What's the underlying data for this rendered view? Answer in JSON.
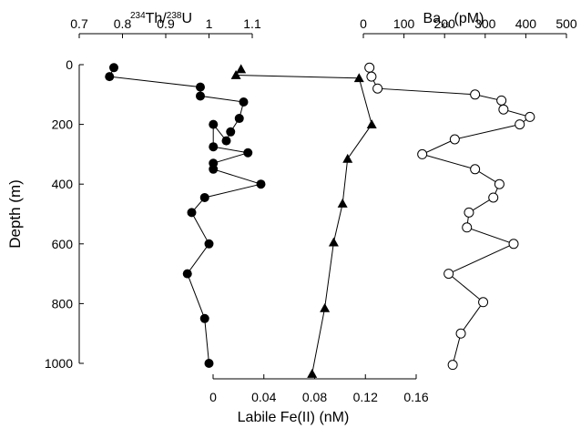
{
  "chart_data": {
    "type": "scatter",
    "depth_axis": {
      "label": "Depth (m)",
      "ticks": [
        "0",
        "200",
        "400",
        "600",
        "800",
        "1000"
      ],
      "range": [
        0,
        1000
      ],
      "inverted": true
    },
    "axes": {
      "th_u": {
        "title_sup1": "234",
        "title_base1": "Th/",
        "title_sup2": "238",
        "title_base2": "U",
        "ticks": [
          "0.7",
          "0.8",
          "0.9",
          "1",
          "1.1"
        ],
        "range": [
          0.7,
          1.1
        ],
        "position": "top-left"
      },
      "ba": {
        "title_base": "Ba",
        "title_sub": "xs",
        "title_unit": " (pM)",
        "ticks": [
          "0",
          "100",
          "200",
          "300",
          "400",
          "500"
        ],
        "range": [
          0,
          500
        ],
        "position": "top-right"
      },
      "fe": {
        "title": "Labile Fe(II) (nM)",
        "ticks": [
          "0",
          "0.04",
          "0.08",
          "0.12",
          "0.16"
        ],
        "range": [
          0,
          0.16
        ],
        "position": "bottom"
      }
    },
    "series": [
      {
        "key": "th_u",
        "marker": "filled-circle",
        "points": [
          {
            "x": 0.78,
            "y": 10
          },
          {
            "x": 0.77,
            "y": 40
          },
          {
            "x": 0.98,
            "y": 75
          },
          {
            "x": 0.98,
            "y": 105
          },
          {
            "x": 1.08,
            "y": 125
          },
          {
            "x": 1.07,
            "y": 180
          },
          {
            "x": 1.05,
            "y": 225
          },
          {
            "x": 1.04,
            "y": 255
          },
          {
            "x": 1.01,
            "y": 200
          },
          {
            "x": 1.01,
            "y": 275
          },
          {
            "x": 1.09,
            "y": 295
          },
          {
            "x": 1.01,
            "y": 330
          },
          {
            "x": 1.01,
            "y": 350
          },
          {
            "x": 1.12,
            "y": 400
          },
          {
            "x": 0.99,
            "y": 445
          },
          {
            "x": 0.96,
            "y": 495
          },
          {
            "x": 1.0,
            "y": 600
          },
          {
            "x": 0.95,
            "y": 700
          },
          {
            "x": 0.99,
            "y": 850
          },
          {
            "x": 1.0,
            "y": 1000
          }
        ]
      },
      {
        "key": "ba",
        "marker": "open-circle",
        "points": [
          {
            "x": 15,
            "y": 10
          },
          {
            "x": 20,
            "y": 40
          },
          {
            "x": 35,
            "y": 80
          },
          {
            "x": 275,
            "y": 100
          },
          {
            "x": 340,
            "y": 120
          },
          {
            "x": 345,
            "y": 150
          },
          {
            "x": 410,
            "y": 175
          },
          {
            "x": 385,
            "y": 200
          },
          {
            "x": 225,
            "y": 250
          },
          {
            "x": 145,
            "y": 300
          },
          {
            "x": 275,
            "y": 350
          },
          {
            "x": 335,
            "y": 400
          },
          {
            "x": 320,
            "y": 445
          },
          {
            "x": 260,
            "y": 495
          },
          {
            "x": 255,
            "y": 545
          },
          {
            "x": 370,
            "y": 600
          },
          {
            "x": 210,
            "y": 700
          },
          {
            "x": 295,
            "y": 795
          },
          {
            "x": 240,
            "y": 900
          },
          {
            "x": 220,
            "y": 1005
          }
        ]
      },
      {
        "key": "fe",
        "marker": "filled-triangle",
        "points": [
          {
            "x": 0.022,
            "y": 15
          },
          {
            "x": 0.018,
            "y": 35
          },
          {
            "x": 0.115,
            "y": 45
          },
          {
            "x": 0.125,
            "y": 200
          },
          {
            "x": 0.106,
            "y": 315
          },
          {
            "x": 0.102,
            "y": 465
          },
          {
            "x": 0.095,
            "y": 595
          },
          {
            "x": 0.088,
            "y": 815
          },
          {
            "x": 0.078,
            "y": 1035
          }
        ]
      }
    ]
  }
}
